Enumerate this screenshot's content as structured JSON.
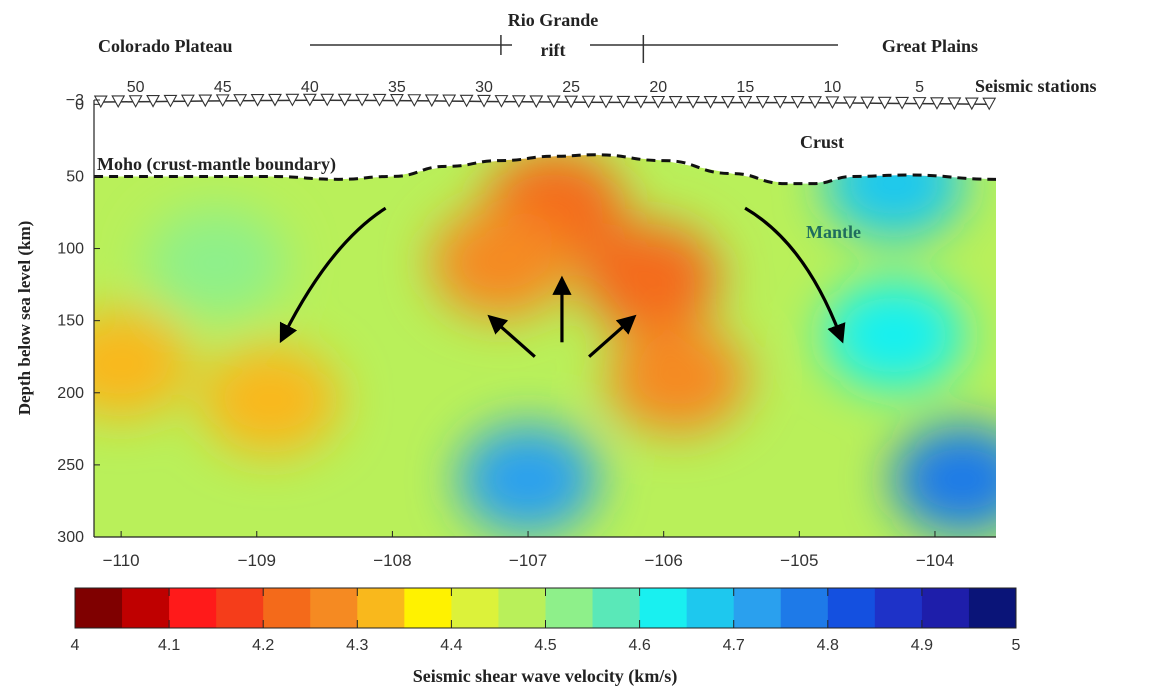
{
  "chart_data": {
    "type": "heatmap",
    "title": "",
    "xlabel": "",
    "ylabel": "Depth below sea level (km)",
    "x_ticks": [
      "−110",
      "−109",
      "−108",
      "−107",
      "−106",
      "−105",
      "−104"
    ],
    "x_tick_values": [
      -110,
      -109,
      -108,
      -107,
      -106,
      -105,
      -104
    ],
    "xlim": [
      -110.2,
      -103.55
    ],
    "y_ticks": [
      "−3",
      "0",
      "50",
      "100",
      "150",
      "200",
      "250",
      "300"
    ],
    "y_tick_values": [
      -3,
      0,
      50,
      100,
      150,
      200,
      250,
      300
    ],
    "ylim": [
      300,
      -3
    ],
    "regions": {
      "colorado_plateau": "Colorado Plateau",
      "rift_line1": "Rio Grande",
      "rift_line2": "rift",
      "great_plains": "Great Plains",
      "bounds_x": [
        -107.2,
        -106.15
      ]
    },
    "stations": {
      "label": "Seismic stations",
      "number_labels": [
        "50",
        "45",
        "40",
        "35",
        "30",
        "25",
        "20",
        "15",
        "10",
        "5"
      ],
      "numbers": [
        50,
        45,
        40,
        35,
        30,
        25,
        20,
        15,
        10,
        5
      ],
      "x_first": -110.15,
      "x_last": -103.6,
      "count": 52
    },
    "annotations": {
      "moho": "Moho (crust-mantle boundary)",
      "crust": "Crust",
      "mantle": "Mantle"
    },
    "moho_depth_km": [
      [
        -110.2,
        50
      ],
      [
        -109.5,
        50
      ],
      [
        -108.9,
        50
      ],
      [
        -108.4,
        52
      ],
      [
        -108.0,
        50
      ],
      [
        -107.6,
        43
      ],
      [
        -107.2,
        39
      ],
      [
        -106.8,
        36
      ],
      [
        -106.5,
        35
      ],
      [
        -106.0,
        39
      ],
      [
        -105.5,
        48
      ],
      [
        -105.1,
        55
      ],
      [
        -104.9,
        55
      ],
      [
        -104.6,
        50
      ],
      [
        -104.2,
        49
      ],
      [
        -103.55,
        52
      ]
    ],
    "velocity_field": {
      "background_km_s": 4.45,
      "anomalies": [
        {
          "lon": -106.8,
          "depth": 70,
          "v": 4.2
        },
        {
          "lon": -107.2,
          "depth": 110,
          "v": 4.3
        },
        {
          "lon": -106.1,
          "depth": 120,
          "v": 4.22
        },
        {
          "lon": -105.9,
          "depth": 190,
          "v": 4.3
        },
        {
          "lon": -107.0,
          "depth": 260,
          "v": 4.7
        },
        {
          "lon": -104.3,
          "depth": 160,
          "v": 4.62
        },
        {
          "lon": -103.8,
          "depth": 260,
          "v": 4.78
        },
        {
          "lon": -104.3,
          "depth": 55,
          "v": 4.68
        },
        {
          "lon": -110.0,
          "depth": 180,
          "v": 4.35
        },
        {
          "lon": -108.9,
          "depth": 205,
          "v": 4.35
        },
        {
          "lon": -109.3,
          "depth": 110,
          "v": 4.55
        }
      ]
    },
    "flow_arrows": [
      {
        "direction": "down-left",
        "from": [
          -108.05,
          72
        ],
        "to": [
          -108.8,
          160
        ]
      },
      {
        "direction": "down-right",
        "from": [
          -105.4,
          72
        ],
        "to": [
          -104.7,
          160
        ]
      },
      {
        "direction": "up",
        "from": [
          -106.75,
          165
        ],
        "to": [
          -106.75,
          125
        ]
      },
      {
        "direction": "up-left",
        "from": [
          -106.95,
          175
        ],
        "to": [
          -107.25,
          150
        ]
      },
      {
        "direction": "up-right",
        "from": [
          -106.55,
          175
        ],
        "to": [
          -106.25,
          150
        ]
      }
    ],
    "colorbar": {
      "label": "Seismic shear wave velocity (km/s)",
      "min": 4,
      "max": 5,
      "tick_values": [
        4,
        4.1,
        4.2,
        4.3,
        4.4,
        4.5,
        4.6,
        4.7,
        4.8,
        4.9,
        5
      ],
      "tick_labels": [
        "4",
        "4.1",
        "4.2",
        "4.3",
        "4.4",
        "4.5",
        "4.6",
        "4.7",
        "4.8",
        "4.9",
        "5"
      ],
      "colors": [
        "#7f0000",
        "#bf0000",
        "#ff1a1a",
        "#f53d1a",
        "#f46a1a",
        "#f58a22",
        "#f9b81c",
        "#fff200",
        "#dcf23a",
        "#b9f05a",
        "#8ef08a",
        "#5ae8b8",
        "#19f0f0",
        "#1ec8ee",
        "#2aa0ee",
        "#1e7ae8",
        "#1450e0",
        "#1e32c8",
        "#1e1eaa",
        "#0a1478"
      ]
    }
  }
}
